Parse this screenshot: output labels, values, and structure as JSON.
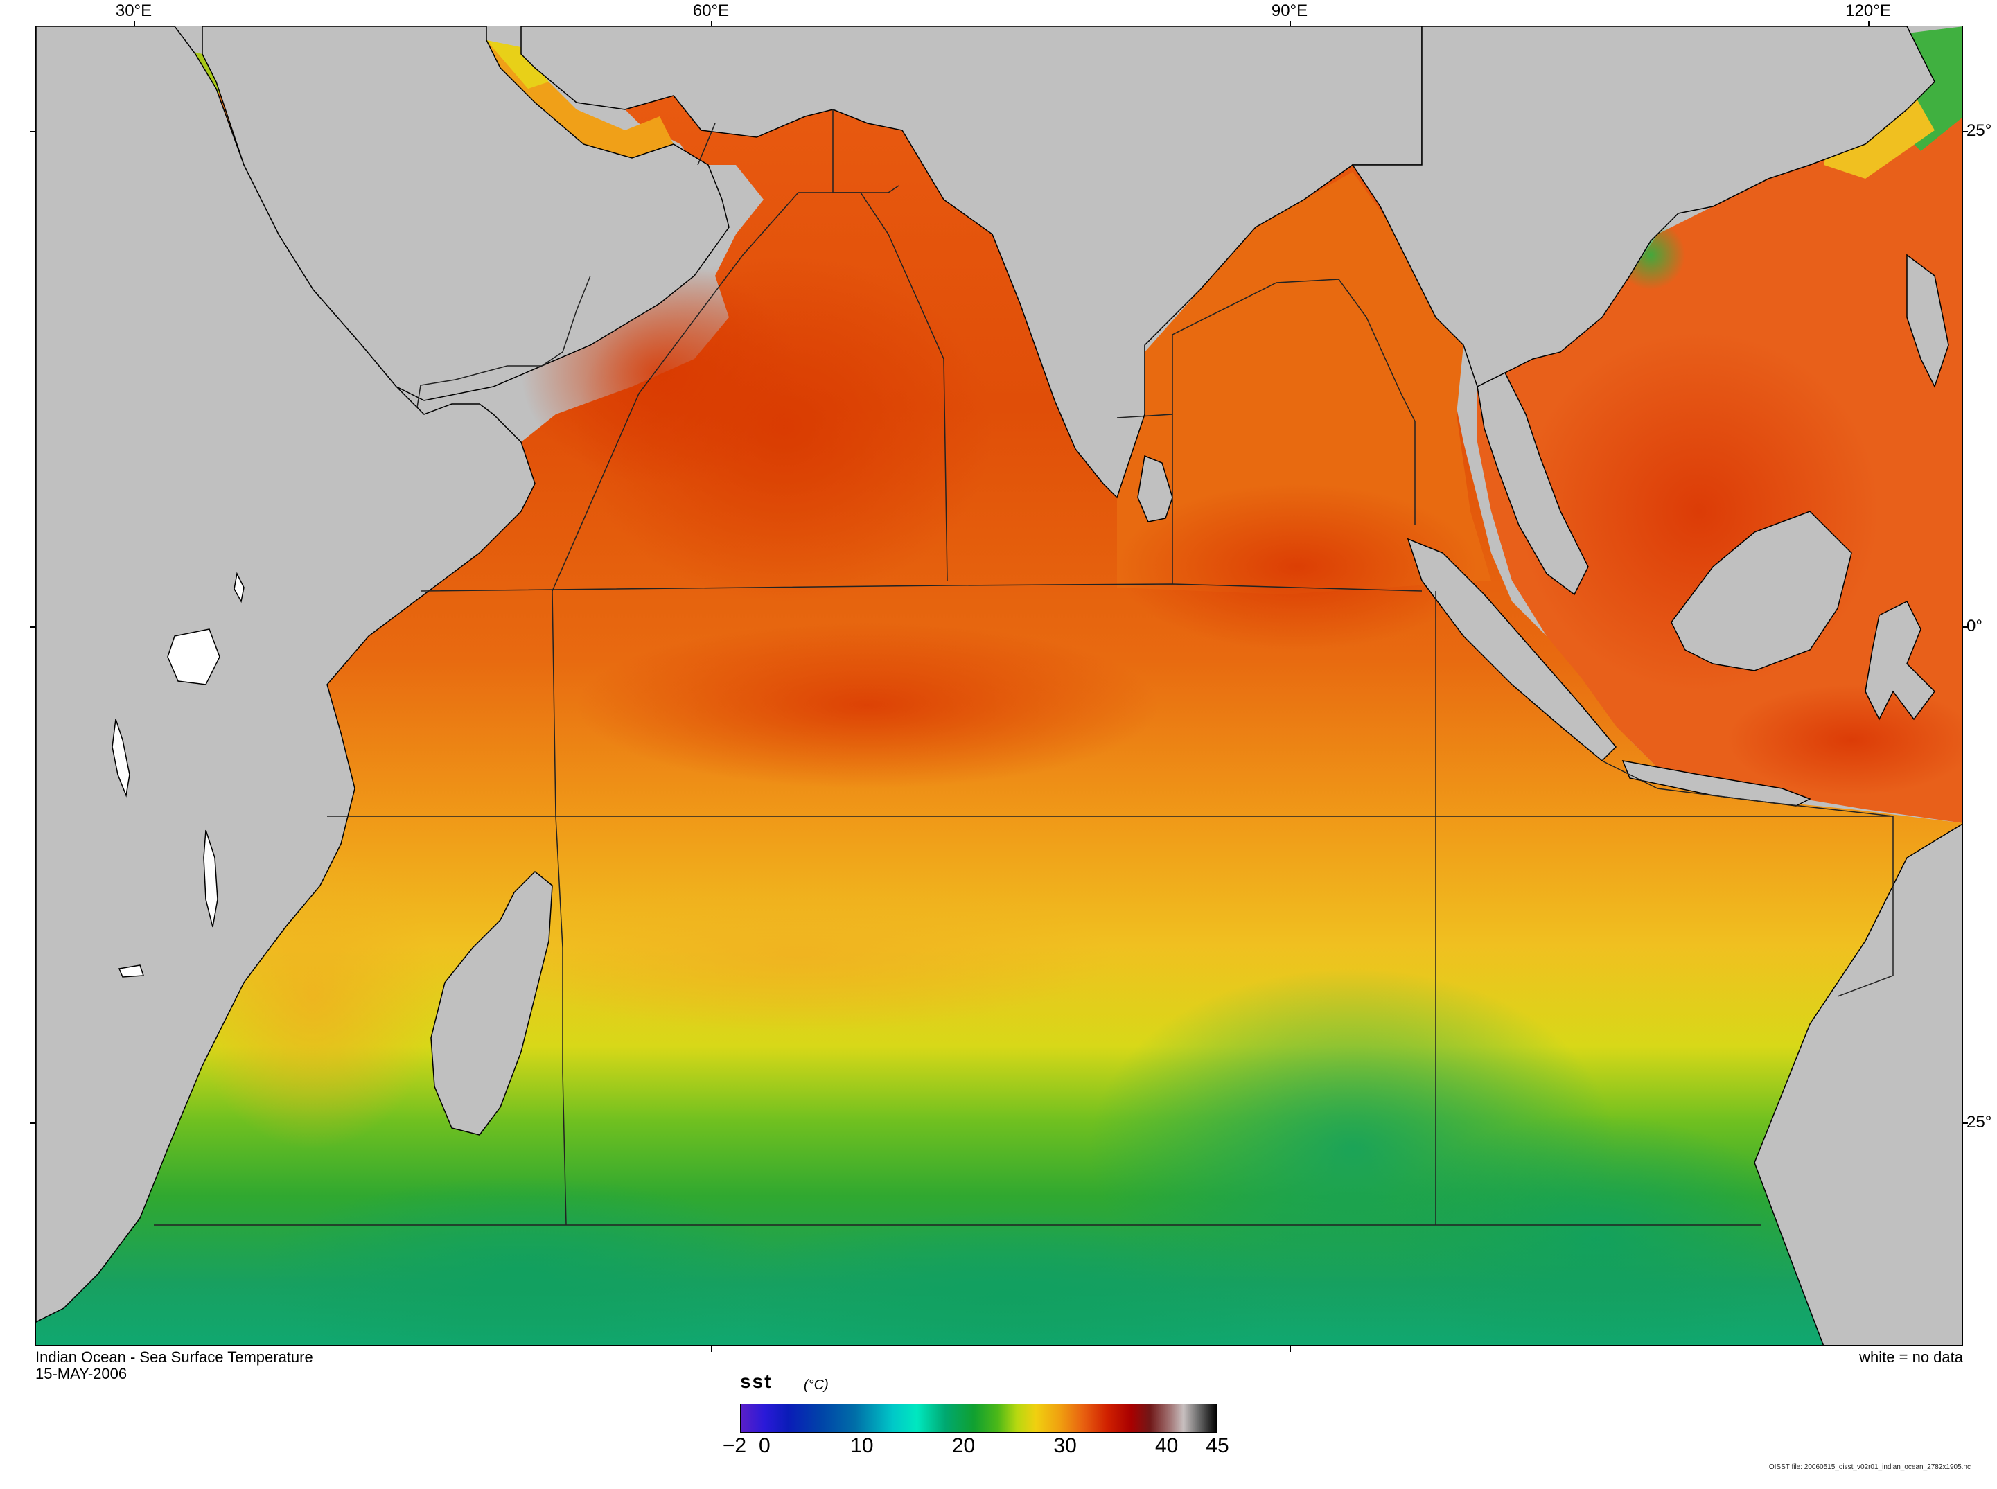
{
  "map": {
    "title": "Indian Ocean - Sea Surface Temperature",
    "date": "15-MAY-2006",
    "no_data_note": "white = no data",
    "file_info": "OISST file: 20060515_oisst_v02r01_indian_ocean_2782x1905.nc",
    "lon_labels": [
      "30°E",
      "60°E",
      "90°E",
      "120°E"
    ],
    "lat_labels": [
      "25°",
      "0°",
      "25°"
    ],
    "colors": {
      "land": "#c0c0c0",
      "no_data": "#ffffff",
      "coastline": "#000000",
      "region_boundary": "#222222"
    }
  },
  "colorbar": {
    "variable": "sst",
    "units": "(°C)",
    "range": [
      -2,
      45
    ],
    "tick_labels": [
      "−2",
      "0",
      "10",
      "20",
      "30",
      "40",
      "45"
    ],
    "tick_values": [
      -2,
      0,
      10,
      20,
      30,
      40,
      45
    ]
  }
}
